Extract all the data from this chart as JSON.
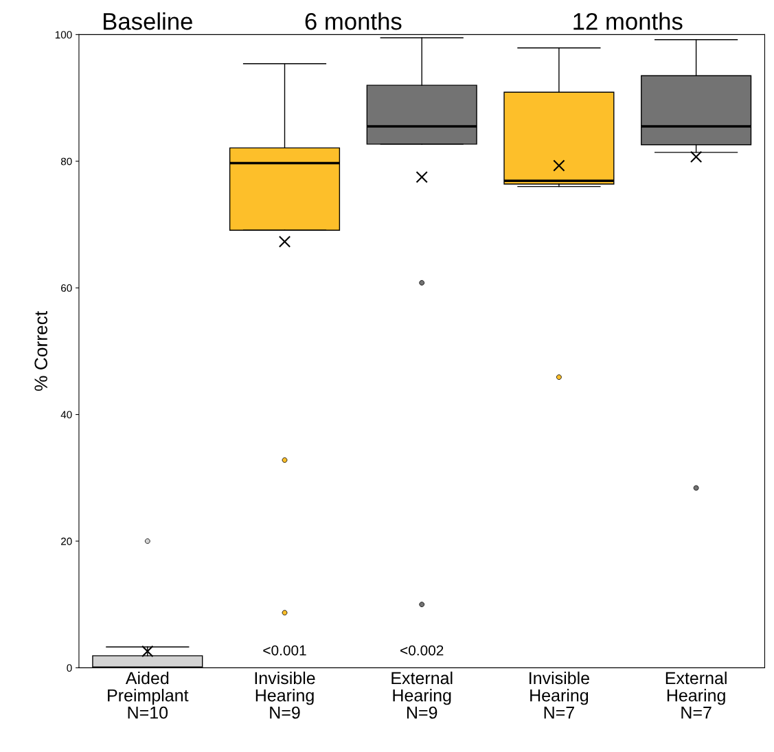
{
  "chart_data": {
    "type": "box",
    "ylabel": "% Correct",
    "categories": [
      "Aided\nPreimplant\nN=10",
      "Invisible\nHearing\nN=9",
      "External\nHearing\nN=9",
      "Invisible\nHearing\nN=7",
      "External\nHearing\nN=7"
    ],
    "colors": [
      "#d3d3d3",
      "#fdbf2a",
      "#737373",
      "#fdbf2a",
      "#737373"
    ],
    "boxes": [
      {
        "low": 0,
        "q1": 0,
        "median": 0,
        "q3": 1.9,
        "high": 3.3,
        "mean": 2.6,
        "outliers": [
          20
        ]
      },
      {
        "low": 69.1,
        "q1": 69.1,
        "median": 79.7,
        "q3": 82.1,
        "high": 95.4,
        "mean": 67.3,
        "outliers": [
          32.8,
          8.7
        ]
      },
      {
        "low": 82.7,
        "q1": 82.7,
        "median": 85.5,
        "q3": 92.0,
        "high": 99.5,
        "mean": 77.5,
        "outliers": [
          60.8,
          10.0
        ]
      },
      {
        "low": 76.0,
        "q1": 76.4,
        "median": 76.9,
        "q3": 90.9,
        "high": 97.9,
        "mean": 79.3,
        "outliers": [
          45.9
        ]
      },
      {
        "low": 81.4,
        "q1": 82.6,
        "median": 85.5,
        "q3": 93.5,
        "high": 99.2,
        "mean": 80.7,
        "outliers": [
          28.4
        ]
      }
    ],
    "ylim": [
      0,
      100
    ],
    "yticks": [
      0,
      20,
      40,
      60,
      80,
      100
    ],
    "grid": false,
    "legend": false,
    "annotations": [
      "Baseline",
      "6 months",
      "12 months",
      "<0.001",
      "<0.002"
    ]
  }
}
